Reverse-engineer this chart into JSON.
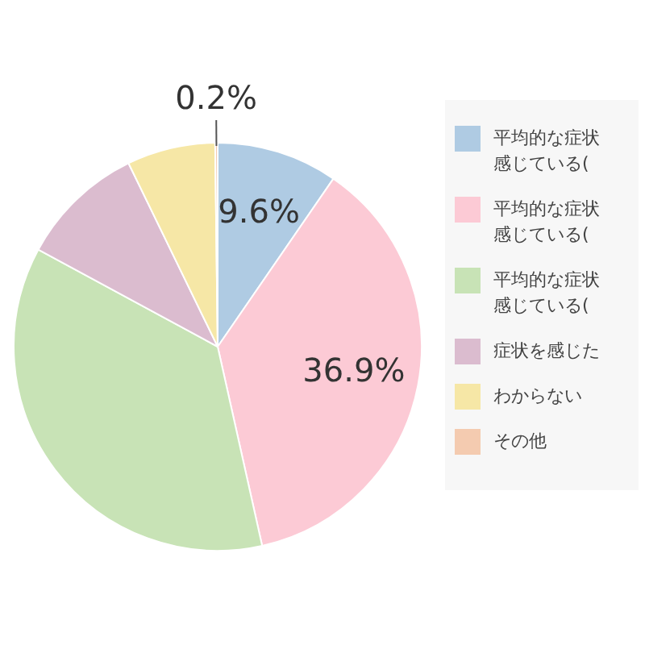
{
  "chart_data": {
    "type": "pie",
    "categories": [
      "平均的な症状感じている(",
      "平均的な症状感じている(",
      "平均的な症状感じている(",
      "症状を感じた",
      "わからない",
      "その他"
    ],
    "values": [
      9.6,
      36.9,
      36.4,
      9.9,
      7.0,
      0.2
    ],
    "colors": [
      "#afcbe3",
      "#fccad5",
      "#c8e3b6",
      "#dbbccf",
      "#f6e7a6",
      "#f4cbb0"
    ],
    "value_labels": [
      "9.6%",
      "36.9%",
      null,
      null,
      null,
      "0.2%"
    ],
    "legend": "right"
  }
}
